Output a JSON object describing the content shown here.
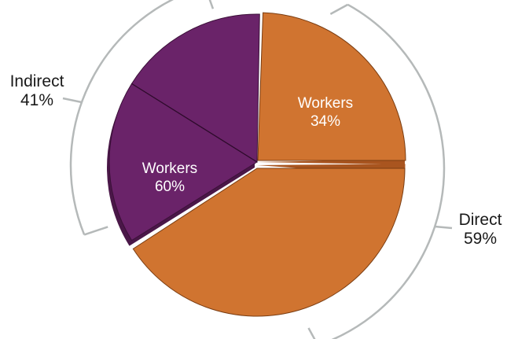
{
  "chart_data": {
    "type": "pie",
    "groups": [
      {
        "name": "Indirect",
        "percent": "41%",
        "color": "#6a2369",
        "slices": [
          {
            "label": "Workers",
            "value_label": "60%"
          },
          {
            "label": "",
            "value_label": ""
          }
        ],
        "approx_values": [
          60,
          40
        ]
      },
      {
        "name": "Direct",
        "percent": "59%",
        "color": "#d07430",
        "slices": [
          {
            "label": "Workers",
            "value_label": "34%"
          },
          {
            "label": "",
            "value_label": ""
          }
        ],
        "approx_values": [
          34,
          66
        ]
      }
    ],
    "colors": {
      "indirect": "#6a2369",
      "indirect_shadow": "#4a1748",
      "direct": "#d07430",
      "direct_shadow": "#a9551f",
      "bracket": "#b5b9b9"
    }
  }
}
